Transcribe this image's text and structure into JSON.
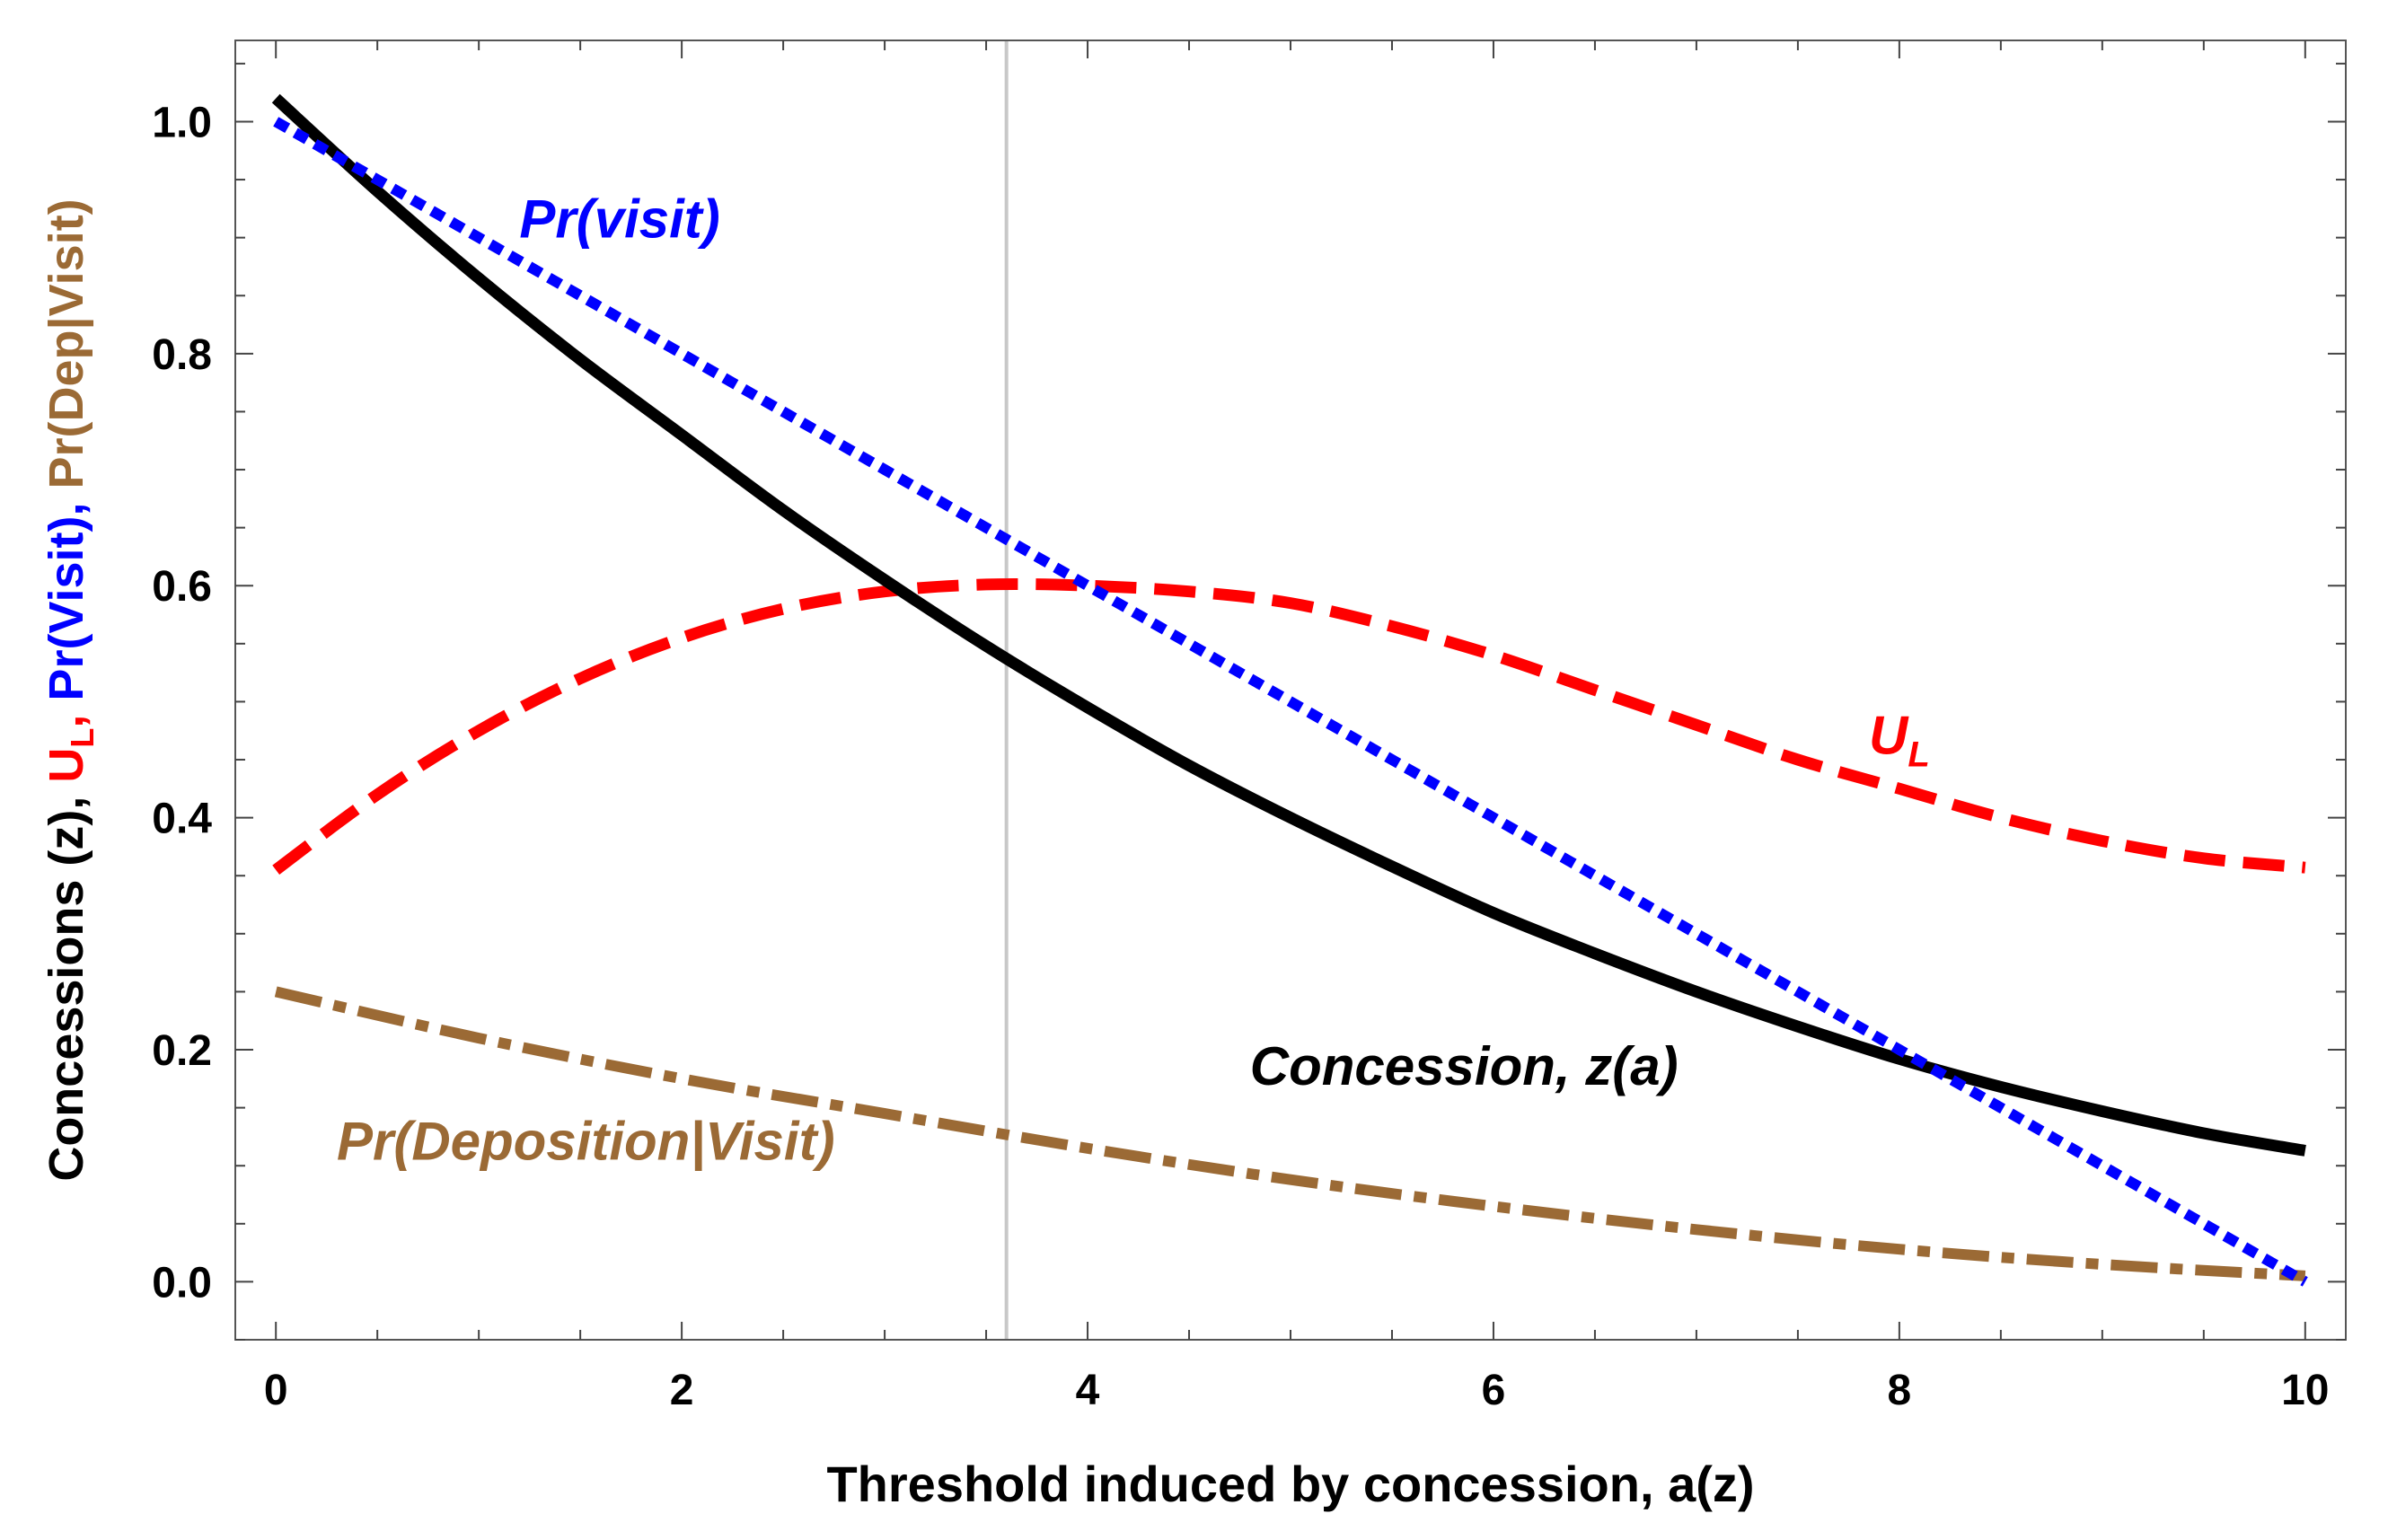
{
  "chart_data": {
    "type": "line",
    "xlabel": "Threshold induced by concession, a(z)",
    "ylabel_parts": [
      {
        "text": "Concessions (z), ",
        "color_key": "axis"
      },
      {
        "text": "U",
        "color_key": "ul"
      },
      {
        "text": "L",
        "color_key": "ul",
        "subscript": true
      },
      {
        "text": ", ",
        "color_key": "ul"
      },
      {
        "text": "Pr(Visit), ",
        "color_key": "visit"
      },
      {
        "text": "Pr(Dep|Visit)",
        "color_key": "dep"
      }
    ],
    "xlim": [
      -0.2,
      10.2
    ],
    "ylim": [
      -0.05,
      1.07
    ],
    "x_ticks": [
      0,
      2,
      4,
      6,
      8,
      10
    ],
    "x_tick_labels": [
      "0",
      "2",
      "4",
      "6",
      "8",
      "10"
    ],
    "y_ticks": [
      0.0,
      0.2,
      0.4,
      0.6,
      0.8,
      1.0
    ],
    "y_tick_labels": [
      "0.0",
      "0.2",
      "0.4",
      "0.6",
      "0.8",
      "1.0"
    ],
    "vertical_line_x": 3.6,
    "colors": {
      "axis": "#000000",
      "concession": "#000000",
      "visit": "#0000ff",
      "ul": "#ff0000",
      "dep": "#9b6a35",
      "vline": "#c8c8c8",
      "frame": "#555555"
    },
    "series": [
      {
        "name": "Concession, z(a)",
        "color_key": "concession",
        "style": "solid",
        "x": [
          0,
          0.5,
          1,
          1.5,
          2,
          2.5,
          3,
          3.5,
          4,
          4.5,
          5,
          5.5,
          6,
          6.5,
          7,
          7.5,
          8,
          8.5,
          9,
          9.5,
          10
        ],
        "values": [
          1.02,
          0.94,
          0.865,
          0.795,
          0.73,
          0.665,
          0.605,
          0.548,
          0.495,
          0.445,
          0.4,
          0.358,
          0.318,
          0.283,
          0.25,
          0.22,
          0.192,
          0.168,
          0.147,
          0.128,
          0.113
        ]
      },
      {
        "name": "Pr(visit)",
        "color_key": "visit",
        "style": "dotted",
        "x": [
          0,
          1,
          2,
          3,
          4,
          5,
          6,
          7,
          8,
          9,
          10
        ],
        "values": [
          1.0,
          0.9,
          0.8,
          0.7,
          0.6,
          0.5,
          0.4,
          0.3,
          0.2,
          0.1,
          0.0
        ]
      },
      {
        "name": "U_L",
        "color_key": "ul",
        "style": "dashed",
        "x": [
          0,
          0.5,
          1,
          1.5,
          2,
          2.5,
          3,
          3.5,
          4,
          4.5,
          5,
          5.5,
          6,
          6.5,
          7,
          7.5,
          8,
          8.5,
          9,
          9.5,
          10
        ],
        "values": [
          0.355,
          0.42,
          0.475,
          0.52,
          0.555,
          0.58,
          0.595,
          0.601,
          0.6,
          0.595,
          0.585,
          0.565,
          0.54,
          0.51,
          0.48,
          0.45,
          0.425,
          0.4,
          0.38,
          0.365,
          0.357
        ]
      },
      {
        "name": "Pr(Deposition|Visit)",
        "color_key": "dep",
        "style": "dashdot",
        "x": [
          0,
          1,
          2,
          3,
          4,
          5,
          6,
          7,
          8,
          9,
          10
        ],
        "values": [
          0.25,
          0.21,
          0.175,
          0.145,
          0.115,
          0.088,
          0.065,
          0.045,
          0.028,
          0.015,
          0.005
        ]
      }
    ],
    "annotations": [
      {
        "key": "visit",
        "text": "Pr(visit)",
        "x": 1.2,
        "y": 0.9,
        "color_key": "visit",
        "anchor": "start"
      },
      {
        "key": "ul",
        "text": "U",
        "sub": "L",
        "x": 8.0,
        "y": 0.455,
        "color_key": "ul",
        "anchor": "middle"
      },
      {
        "key": "concession",
        "text": "Concession, z(a)",
        "x": 4.8,
        "y": 0.17,
        "color_key": "concession",
        "anchor": "start"
      },
      {
        "key": "dep",
        "text": "Pr(Deposition|Visit)",
        "x": 0.3,
        "y": 0.105,
        "color_key": "dep",
        "anchor": "start"
      }
    ]
  }
}
